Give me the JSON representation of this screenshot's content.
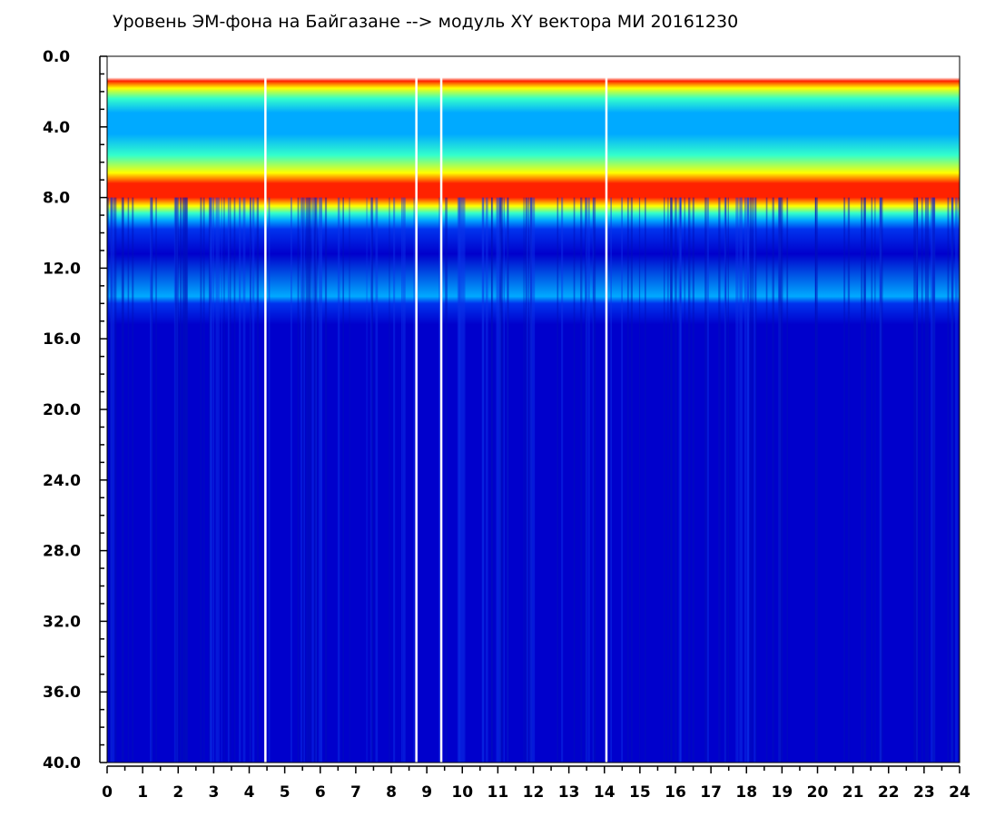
{
  "chart_data": {
    "type": "heatmap",
    "title": "Уровень ЭМ-фона на Байгазане   -->  модуль XY вектора МИ  20161230",
    "x_axis": {
      "min": 0,
      "max": 24,
      "step": 1,
      "tick_labels": [
        "0",
        "1",
        "2",
        "3",
        "4",
        "5",
        "6",
        "7",
        "8",
        "9",
        "10",
        "11",
        "12",
        "13",
        "14",
        "15",
        "16",
        "17",
        "18",
        "19",
        "20",
        "21",
        "22",
        "23",
        "24"
      ]
    },
    "y_axis": {
      "min": 0,
      "max": 40,
      "step": 4,
      "inverted": true,
      "tick_labels": [
        "0.0",
        "4.0",
        "8.0",
        "12.0",
        "16.0",
        "20.0",
        "24.0",
        "28.0",
        "32.0",
        "36.0",
        "40.0"
      ]
    },
    "colormap": [
      "#0000cc",
      "#0033ee",
      "#00aaff",
      "#33ffcc",
      "#ffff00",
      "#ff2200"
    ],
    "background_color": "#0018d6",
    "description_bands": [
      {
        "y_from": 1.2,
        "y_to": 2.0,
        "level": "high"
      },
      {
        "y_from": 2.0,
        "y_to": 6.5,
        "level": "medium"
      },
      {
        "y_from": 6.5,
        "y_to": 8.5,
        "level": "high"
      },
      {
        "y_from": 8.5,
        "y_to": 40.0,
        "level": "low"
      }
    ],
    "gaps_x": [
      4.45,
      8.7,
      9.4,
      14.05
    ]
  }
}
